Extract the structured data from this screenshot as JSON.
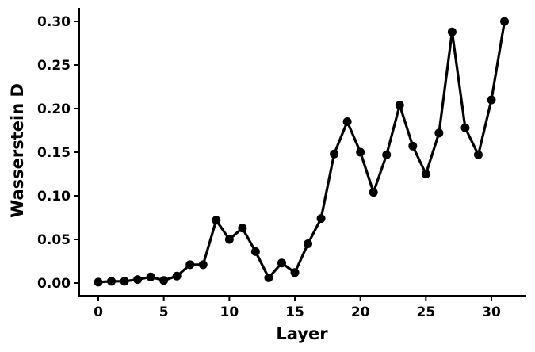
{
  "chart_data": {
    "type": "line",
    "title": "",
    "xlabel": "Layer",
    "ylabel": "Wasserstein D",
    "xlim": [
      -1.5,
      32.5
    ],
    "ylim": [
      -0.015,
      0.315
    ],
    "xticks": [
      0,
      5,
      10,
      15,
      20,
      25,
      30
    ],
    "xtick_labels": [
      "0",
      "5",
      "10",
      "15",
      "20",
      "25",
      "30"
    ],
    "yticks": [
      0.0,
      0.05,
      0.1,
      0.15,
      0.2,
      0.25,
      0.3
    ],
    "ytick_labels": [
      "0.00",
      "0.05",
      "0.10",
      "0.15",
      "0.20",
      "0.25",
      "0.30"
    ],
    "grid": false,
    "color": "#000000",
    "x": [
      0,
      1,
      2,
      3,
      4,
      5,
      6,
      7,
      8,
      9,
      10,
      11,
      12,
      13,
      14,
      15,
      16,
      17,
      18,
      19,
      20,
      21,
      22,
      23,
      24,
      25,
      26,
      27,
      28,
      29,
      30,
      31
    ],
    "y": [
      0.001,
      0.002,
      0.002,
      0.004,
      0.007,
      0.003,
      0.008,
      0.021,
      0.021,
      0.072,
      0.05,
      0.063,
      0.036,
      0.006,
      0.023,
      0.012,
      0.045,
      0.074,
      0.148,
      0.185,
      0.15,
      0.104,
      0.147,
      0.204,
      0.157,
      0.125,
      0.172,
      0.288,
      0.178,
      0.147,
      0.21,
      0.3
    ]
  }
}
